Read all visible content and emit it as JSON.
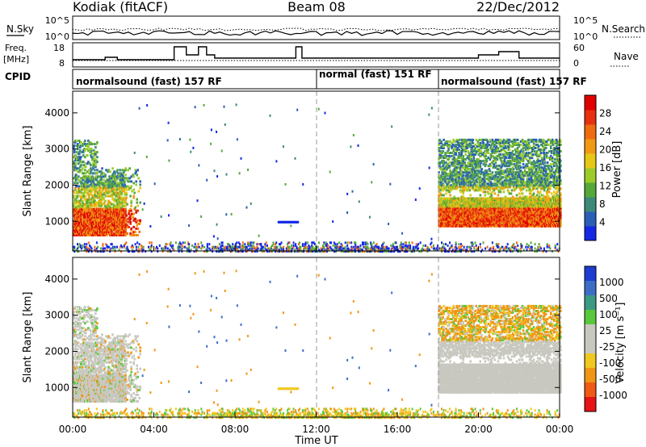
{
  "header": {
    "station": "Kodiak (fitACF)",
    "beam": "Beam 08",
    "date": "22/Dec/2012"
  },
  "panels": {
    "nsky": {
      "label": "N.Sky",
      "ticks": [
        "10^5",
        "10^0"
      ]
    },
    "nsearch": {
      "label": "N.Search",
      "ticks": [
        "10^5",
        "10^0"
      ]
    },
    "freq": {
      "label_line1": "Freq.",
      "label_line2": "[MHz]",
      "ticks": [
        "18",
        "8"
      ]
    },
    "nave": {
      "label": "Nave",
      "ticks": [
        "60",
        "0"
      ]
    },
    "cpid": {
      "label": "CPID",
      "segments": [
        {
          "text": "normalsound (fast) 157 RF",
          "start": "00:00"
        },
        {
          "text": "normal (fast) 151 RF",
          "start": "12:00"
        },
        {
          "text": "normalsound (fast) 157 RF",
          "start": "18:00"
        }
      ]
    }
  },
  "chart_data": [
    {
      "type": "heatmap",
      "name": "Power",
      "ylabel": "Slant Range [km]",
      "xlabel": "",
      "x_range_hours": [
        0,
        24
      ],
      "ylim": [
        180,
        4600
      ],
      "yticks": [
        "1000",
        "2000",
        "3000",
        "4000"
      ],
      "colorbar": {
        "label": "Power [dB]",
        "ticks": [
          "4",
          "8",
          "12",
          "16",
          "20",
          "24",
          "28"
        ],
        "colors": [
          "#1428e6",
          "#2a5fb8",
          "#3d8a7a",
          "#55a83a",
          "#9ccc2a",
          "#e6c814",
          "#f09a14",
          "#f06a10",
          "#e63010",
          "#e00000"
        ]
      },
      "regions": [
        {
          "name": "Early echoes band",
          "t_start": 0.0,
          "t_end": 3.2,
          "r_low": 650,
          "r_high": 3300,
          "level": 20
        },
        {
          "name": "Late echoes band",
          "t_start": 18.0,
          "t_end": 24.0,
          "r_low": 900,
          "r_high": 3300,
          "level": 20
        },
        {
          "name": "Ground scatter",
          "t_start": 0.0,
          "t_end": 24.0,
          "r_low": 200,
          "r_high": 420,
          "level": 8
        }
      ]
    },
    {
      "type": "heatmap",
      "name": "Velocity",
      "ylabel": "Slant Range [km]",
      "xlabel": "Time UT",
      "x_range_hours": [
        0,
        24
      ],
      "xticks": [
        "00:00",
        "04:00",
        "08:00",
        "12:00",
        "16:00",
        "20:00",
        "00:00"
      ],
      "ylim": [
        180,
        4600
      ],
      "yticks": [
        "1000",
        "2000",
        "3000",
        "4000"
      ],
      "colorbar": {
        "label": "Velocity [m s⁻¹]",
        "ticks": [
          "1000",
          "500",
          "100",
          "25",
          "-25",
          "-100",
          "-500",
          "-1000"
        ],
        "colors": [
          "#1e3cd2",
          "#3c6ec8",
          "#3c9a82",
          "#5ac83c",
          "#c8c8c0",
          "#c8c8c0",
          "#f0c81e",
          "#f09614",
          "#f05a14",
          "#e61414"
        ]
      }
    }
  ]
}
